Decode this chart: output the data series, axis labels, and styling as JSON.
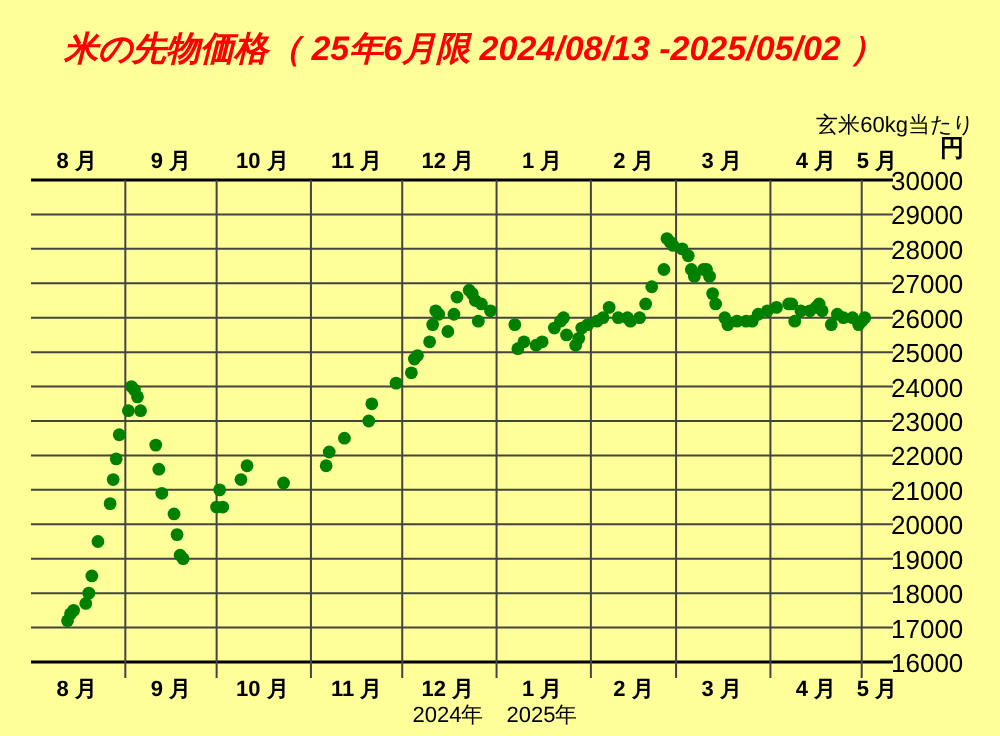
{
  "chart_data": {
    "type": "scatter",
    "title": "米の先物価格（ 25年6月限 2024/08/13 -2025/05/02 ）",
    "ylabel": "円",
    "annotations": [
      "玄米60kg当たり",
      "2024年",
      "2025年"
    ],
    "x": [
      "2024-08-13",
      "2024-08-14",
      "2024-08-15",
      "2024-08-19",
      "2024-08-20",
      "2024-08-21",
      "2024-08-23",
      "2024-08-27",
      "2024-08-28",
      "2024-08-29",
      "2024-08-30",
      "2024-09-02",
      "2024-09-03",
      "2024-09-04",
      "2024-09-05",
      "2024-09-06",
      "2024-09-11",
      "2024-09-12",
      "2024-09-13",
      "2024-09-17",
      "2024-09-18",
      "2024-09-19",
      "2024-09-20",
      "2024-10-01",
      "2024-10-02",
      "2024-10-03",
      "2024-10-09",
      "2024-10-11",
      "2024-10-23",
      "2024-11-06",
      "2024-11-07",
      "2024-11-12",
      "2024-11-20",
      "2024-11-21",
      "2024-11-29",
      "2024-12-04",
      "2024-12-05",
      "2024-12-06",
      "2024-12-10",
      "2024-12-11",
      "2024-12-12",
      "2024-12-13",
      "2024-12-16",
      "2024-12-18",
      "2024-12-19",
      "2024-12-23",
      "2024-12-24",
      "2024-12-25",
      "2024-12-26",
      "2024-12-27",
      "2024-12-30",
      "2025-01-07",
      "2025-01-08",
      "2025-01-10",
      "2025-01-14",
      "2025-01-16",
      "2025-01-20",
      "2025-01-22",
      "2025-01-23",
      "2025-01-24",
      "2025-01-27",
      "2025-01-28",
      "2025-01-29",
      "2025-01-31",
      "2025-02-03",
      "2025-02-05",
      "2025-02-07",
      "2025-02-10",
      "2025-02-13",
      "2025-02-14",
      "2025-02-17",
      "2025-02-19",
      "2025-02-21",
      "2025-02-25",
      "2025-02-26",
      "2025-02-27",
      "2025-02-28",
      "2025-03-03",
      "2025-03-05",
      "2025-03-06",
      "2025-03-07",
      "2025-03-10",
      "2025-03-11",
      "2025-03-12",
      "2025-03-13",
      "2025-03-14",
      "2025-03-17",
      "2025-03-18",
      "2025-03-21",
      "2025-03-24",
      "2025-03-26",
      "2025-03-28",
      "2025-03-31",
      "2025-04-03",
      "2025-04-07",
      "2025-04-08",
      "2025-04-09",
      "2025-04-11",
      "2025-04-14",
      "2025-04-16",
      "2025-04-17",
      "2025-04-18",
      "2025-04-21",
      "2025-04-23",
      "2025-04-25",
      "2025-04-28",
      "2025-04-30",
      "2025-05-01",
      "2025-05-02"
    ],
    "series": [
      {
        "color": "#008000",
        "values": [
          17200,
          17400,
          17500,
          17700,
          18000,
          18500,
          19500,
          20600,
          21300,
          21900,
          22600,
          23300,
          24000,
          23900,
          23700,
          23300,
          22300,
          21600,
          20900,
          20300,
          19700,
          19100,
          19000,
          20500,
          21000,
          20500,
          21300,
          21700,
          21200,
          21700,
          22100,
          22500,
          23000,
          23500,
          24100,
          24400,
          24800,
          24900,
          25300,
          25800,
          26200,
          26100,
          25600,
          26100,
          26600,
          26800,
          26700,
          26500,
          25900,
          26400,
          26200,
          25800,
          25100,
          25300,
          25200,
          25300,
          25700,
          25900,
          26000,
          25500,
          25200,
          25400,
          25700,
          25800,
          25900,
          26000,
          26300,
          26000,
          26000,
          25900,
          26000,
          26400,
          26900,
          27400,
          28300,
          28200,
          28100,
          28000,
          27800,
          27400,
          27200,
          27400,
          27400,
          27200,
          26700,
          26400,
          26000,
          25800,
          25900,
          25900,
          25900,
          26100,
          26200,
          26300,
          26400,
          26400,
          25900,
          26200,
          26200,
          26300,
          26400,
          26200,
          25800,
          26100,
          26000,
          26000,
          25800,
          25900,
          26000
        ]
      }
    ],
    "marker": "circle",
    "grid": true,
    "xlim": [
      "2024-08-01",
      "2025-05-08"
    ],
    "xticks": [
      {
        "value": "2024-08-16",
        "label": "8 月"
      },
      {
        "value": "2024-09-01",
        "label": null
      },
      {
        "value": "2024-09-16",
        "label": "9 月"
      },
      {
        "value": "2024-10-01",
        "label": null
      },
      {
        "value": "2024-10-16",
        "label": "10 月"
      },
      {
        "value": "2024-11-01",
        "label": null
      },
      {
        "value": "2024-11-16",
        "label": "11 月"
      },
      {
        "value": "2024-12-01",
        "label": null
      },
      {
        "value": "2024-12-16",
        "label": "12 月"
      },
      {
        "value": "2025-01-01",
        "label": null
      },
      {
        "value": "2025-01-16",
        "label": "1 月"
      },
      {
        "value": "2025-02-01",
        "label": null
      },
      {
        "value": "2025-02-15",
        "label": "2 月"
      },
      {
        "value": "2025-03-01",
        "label": null
      },
      {
        "value": "2025-03-16",
        "label": "3 月"
      },
      {
        "value": "2025-04-01",
        "label": null
      },
      {
        "value": "2025-04-16",
        "label": "4 月"
      },
      {
        "value": "2025-05-01",
        "label": null
      },
      {
        "value": "2025-05-06",
        "label": "5 月"
      }
    ],
    "ylim": [
      16000,
      30000
    ],
    "yticks": [
      16000,
      17000,
      18000,
      19000,
      20000,
      21000,
      22000,
      23000,
      24000,
      25000,
      26000,
      27000,
      28000,
      29000,
      30000
    ]
  }
}
